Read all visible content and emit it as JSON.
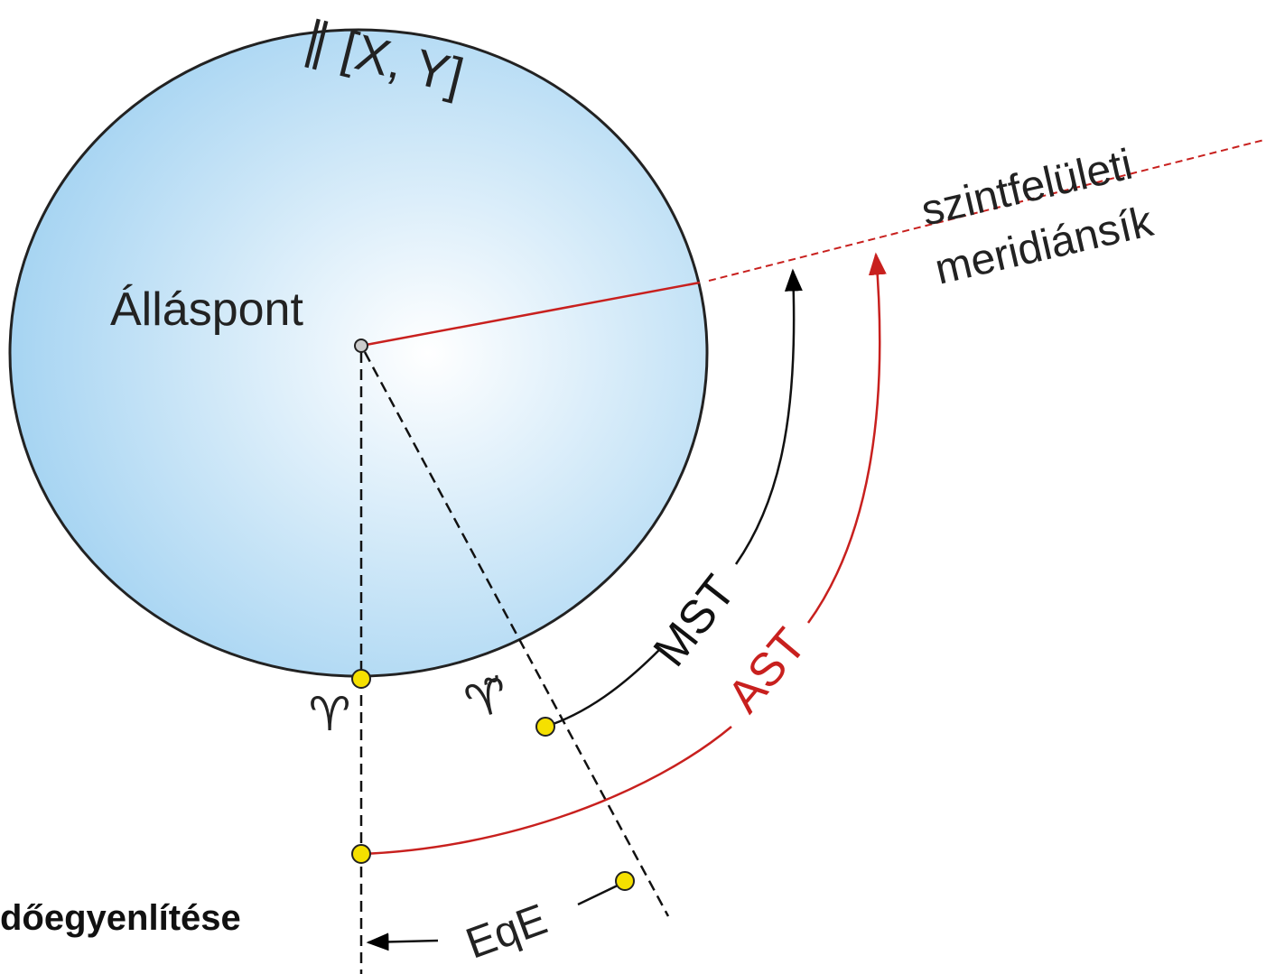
{
  "labels": {
    "axis": "∥ [X, Y]",
    "station": "Álláspont",
    "plane_line1": "szintfelületi",
    "plane_line2": "meridiánsík",
    "mst": "MST",
    "ast": "AST",
    "eqe": "EqE",
    "equinox_true": "♈",
    "equinox_mean": "♈̃",
    "caption": "dőegyenlítése"
  }
}
